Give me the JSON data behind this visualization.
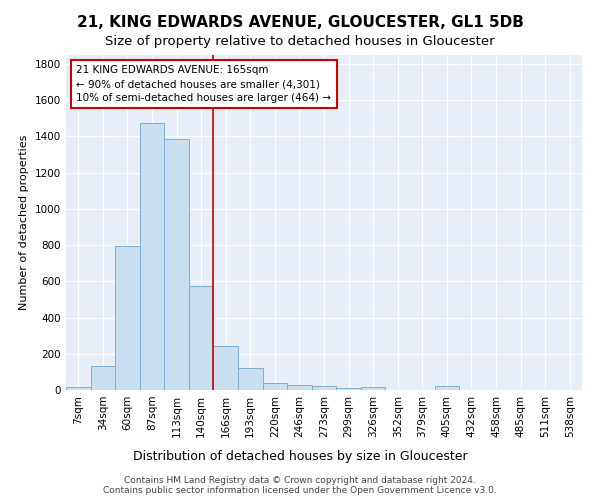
{
  "title1": "21, KING EDWARDS AVENUE, GLOUCESTER, GL1 5DB",
  "title2": "Size of property relative to detached houses in Gloucester",
  "xlabel": "Distribution of detached houses by size in Gloucester",
  "ylabel": "Number of detached properties",
  "categories": [
    "7sqm",
    "34sqm",
    "60sqm",
    "87sqm",
    "113sqm",
    "140sqm",
    "166sqm",
    "193sqm",
    "220sqm",
    "246sqm",
    "273sqm",
    "299sqm",
    "326sqm",
    "352sqm",
    "379sqm",
    "405sqm",
    "432sqm",
    "458sqm",
    "485sqm",
    "511sqm",
    "538sqm"
  ],
  "values": [
    15,
    130,
    795,
    1475,
    1385,
    575,
    245,
    120,
    40,
    28,
    20,
    12,
    18,
    0,
    0,
    22,
    0,
    0,
    0,
    0,
    0
  ],
  "bar_color": "#c8dff0",
  "bar_edge_color": "#7ab0d4",
  "bar_width": 1.0,
  "vline_x_idx": 5.5,
  "vline_color": "#cc0000",
  "annotation_text": "21 KING EDWARDS AVENUE: 165sqm\n← 90% of detached houses are smaller (4,301)\n10% of semi-detached houses are larger (464) →",
  "annotation_box_color": "#ffffff",
  "annotation_box_edge": "#cc0000",
  "ylim": [
    0,
    1850
  ],
  "yticks": [
    0,
    200,
    400,
    600,
    800,
    1000,
    1200,
    1400,
    1600,
    1800
  ],
  "bg_color": "#e8eef8",
  "footer": "Contains HM Land Registry data © Crown copyright and database right 2024.\nContains public sector information licensed under the Open Government Licence v3.0.",
  "title1_fontsize": 11,
  "title2_fontsize": 9.5,
  "xlabel_fontsize": 9,
  "ylabel_fontsize": 8,
  "tick_fontsize": 7.5,
  "annotation_fontsize": 7.5,
  "footer_fontsize": 6.5
}
